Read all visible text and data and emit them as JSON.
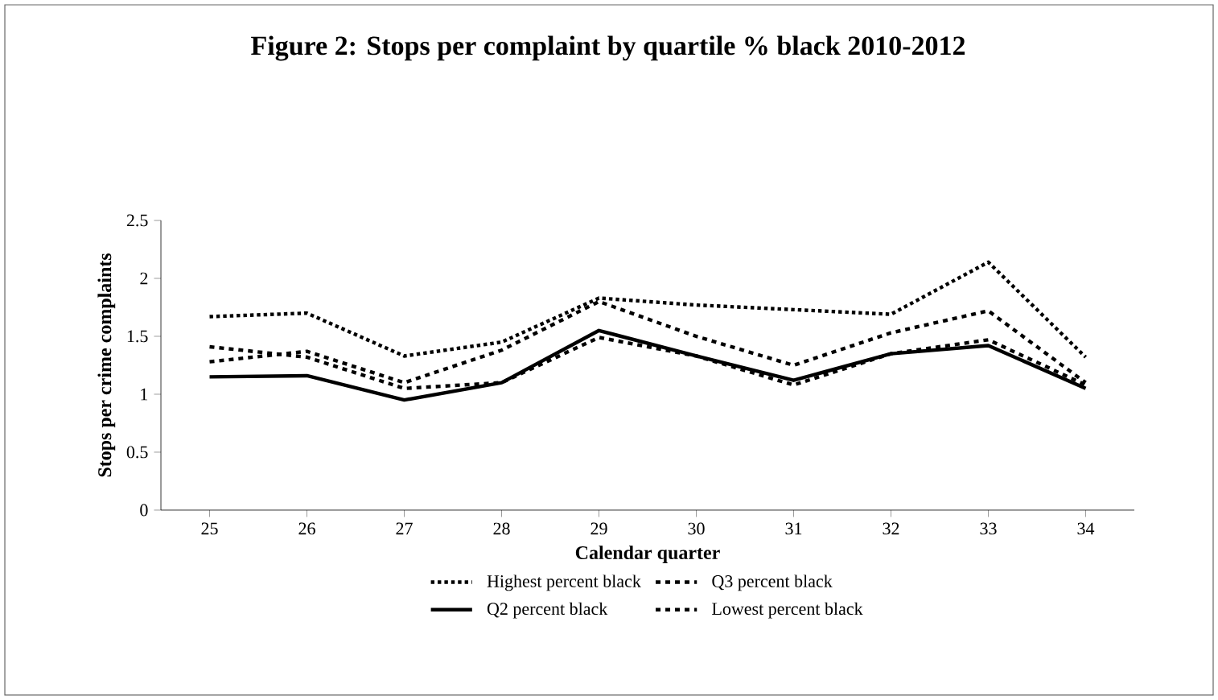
{
  "chart_data": {
    "type": "line",
    "title": "Figure 2: Stops per complaint by quartile % black 2010-2012",
    "xlabel": "Calendar quarter",
    "ylabel": "Stops per crime complaints",
    "categories": [
      "25",
      "26",
      "27",
      "28",
      "29",
      "30",
      "31",
      "32",
      "33",
      "34"
    ],
    "ylim": [
      0,
      2.5
    ],
    "yticks": [
      0,
      0.5,
      1,
      1.5,
      2,
      2.5
    ],
    "grid": false,
    "legend": "bottom",
    "marker": "none",
    "series": [
      {
        "name": "Highest percent black",
        "color": "#000000",
        "line_style": "dotted",
        "values": [
          1.67,
          1.7,
          1.33,
          1.45,
          1.83,
          1.77,
          1.73,
          1.69,
          2.14,
          1.32
        ]
      },
      {
        "name": "Q3 percent black",
        "color": "#000000",
        "line_style": "dashed",
        "values": [
          1.28,
          1.37,
          1.1,
          1.38,
          1.8,
          1.5,
          1.25,
          1.53,
          1.72,
          1.1
        ]
      },
      {
        "name": "Q2 percent black",
        "color": "#000000",
        "line_style": "solid",
        "values": [
          1.15,
          1.16,
          0.95,
          1.1,
          1.55,
          1.33,
          1.12,
          1.35,
          1.42,
          1.05
        ]
      },
      {
        "name": "Lowest percent black",
        "color": "#000000",
        "line_style": "dashed",
        "values": [
          1.41,
          1.32,
          1.05,
          1.1,
          1.49,
          1.33,
          1.08,
          1.35,
          1.47,
          1.08
        ]
      }
    ]
  }
}
